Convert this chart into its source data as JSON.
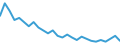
{
  "values": [
    70,
    100,
    82,
    60,
    65,
    55,
    45,
    55,
    42,
    35,
    28,
    35,
    22,
    18,
    25,
    18,
    12,
    20,
    15,
    10,
    8,
    12,
    8,
    15,
    22,
    10
  ],
  "line_color": "#3a9fd4",
  "background_color": "#ffffff",
  "linewidth": 1.4,
  "ylim_min": 0,
  "ylim_max": 108
}
